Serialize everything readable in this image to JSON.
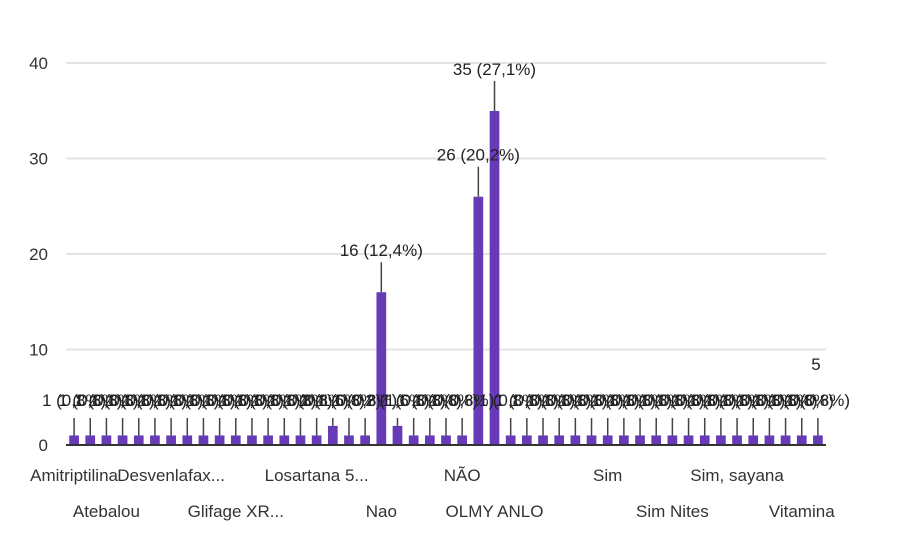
{
  "chart_data": {
    "type": "bar",
    "title": "",
    "xlabel": "",
    "ylabel": "",
    "ylim": [
      0,
      40
    ],
    "y_ticks": [
      0,
      10,
      20,
      30,
      40
    ],
    "grid": true,
    "bar_color": "#673ab7",
    "categories": [
      "Amitriptilina",
      "",
      "Atebalou",
      "",
      "",
      "",
      "Desvenlafax...",
      "",
      "",
      "",
      "Glifage XR...",
      "",
      "",
      "",
      "",
      "Losartana 5...",
      "",
      "",
      "",
      "Nao",
      "",
      "",
      "",
      "",
      "NÃO",
      "",
      "OLMY ANLO",
      "",
      "",
      "",
      "",
      "",
      "",
      "Sim",
      "",
      "",
      "",
      "Sim Nites",
      "",
      "",
      "",
      "Sim, sayana",
      "",
      "",
      "",
      "Vitamina",
      ""
    ],
    "values": [
      1,
      1,
      1,
      1,
      1,
      1,
      1,
      1,
      1,
      1,
      1,
      1,
      1,
      1,
      1,
      1,
      2,
      1,
      1,
      16,
      2,
      1,
      1,
      1,
      1,
      26,
      35,
      1,
      1,
      1,
      1,
      1,
      1,
      1,
      1,
      1,
      1,
      1,
      1,
      1,
      1,
      1,
      1,
      1,
      1,
      1,
      1
    ],
    "data_labels": [
      "1 (0,8%)",
      "1 (0,8%)",
      "1 (0,8%)",
      "1 (0,8%)",
      "1 (0,8%)",
      "1 (0,8%)",
      "1 (0,8%)",
      "1 (0,8%)",
      "1 (0,8%)",
      "1 (0,8%)",
      "1 (0,8%)",
      "1 (0,8%)",
      "1 (0,8%)",
      "1 (0,8%)",
      "1 (0,8%)",
      "1 (0,8%)",
      "2 (1,6%)",
      "1 (0,8%)",
      "1 (0,8%)",
      "16 (12,4%)",
      "2 (1,6%)",
      "1 (0,8%)",
      "1 (0,8%)",
      "1 (0,8%)",
      "1 (0,8%)",
      "26 (20,2%)",
      "35 (27,1%)",
      "1 (0,8%)",
      "1 (0,8%)",
      "1 (0,8%)",
      "1 (0,8%)",
      "1 (0,8%)",
      "1 (0,8%)",
      "1 (0,8%)",
      "1 (0,8%)",
      "1 (0,8%)",
      "1 (0,8%)",
      "1 (0,8%)",
      "1 (0,8%)",
      "1 (0,8%)",
      "1 (0,8%)",
      "1 (0,8%)",
      "1 (0,8%)",
      "1 (0,8%)",
      "1 (0,8%)",
      "1 (0,8%)",
      "1 (0,8%)"
    ],
    "extra_label": "5"
  }
}
